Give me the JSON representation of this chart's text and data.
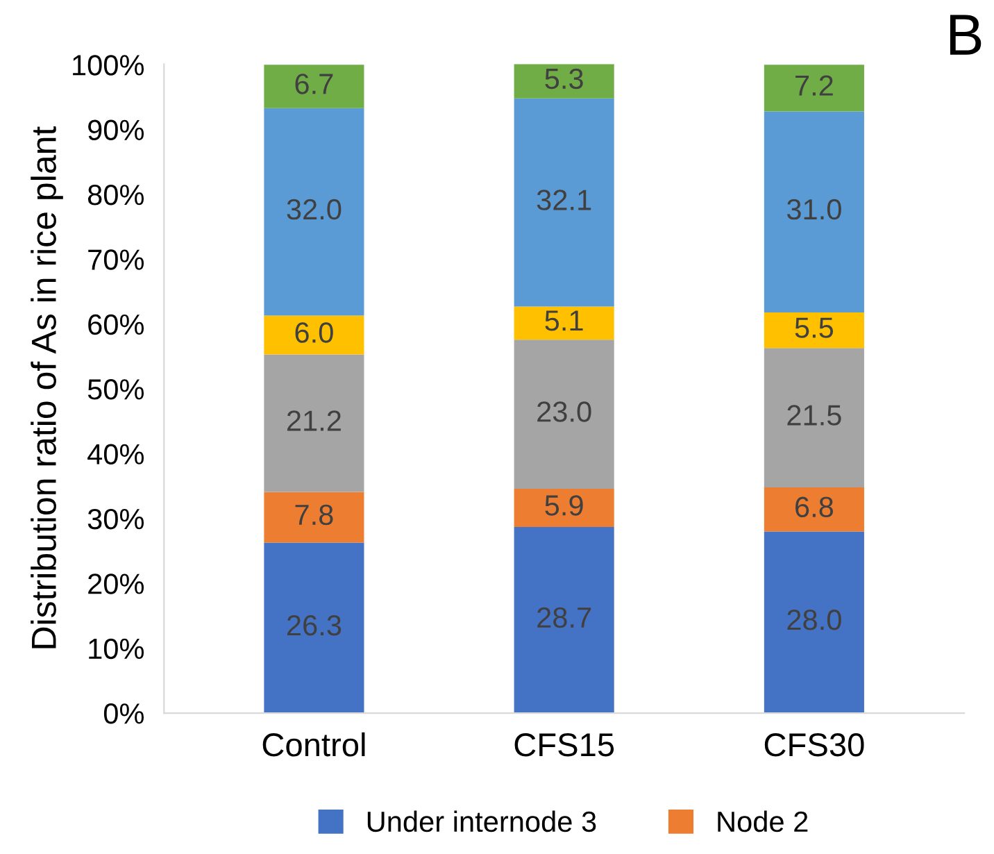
{
  "chart_data": {
    "type": "bar",
    "stacked": true,
    "ylabel": "Distribution ratio of As in rice plant",
    "categories": [
      "Control",
      "CFS15",
      "CFS30"
    ],
    "series": [
      {
        "name": "Under internode 3",
        "color": "#4472c4",
        "values": [
          26.3,
          28.7,
          28.0
        ],
        "value_labels": [
          "26.3",
          "28.7",
          "28.0"
        ]
      },
      {
        "name": "Node 2",
        "color": "#ed7d31",
        "values": [
          7.8,
          5.9,
          6.8
        ],
        "value_labels": [
          "7.8",
          "5.9",
          "6.8"
        ]
      },
      {
        "color": "#a5a5a5",
        "values": [
          21.2,
          23.0,
          21.5
        ],
        "value_labels": [
          "21.2",
          "23.0",
          "21.5"
        ]
      },
      {
        "color": "#ffc000",
        "values": [
          6.0,
          5.1,
          5.5
        ],
        "value_labels": [
          "6.0",
          "5.1",
          "5.5"
        ]
      },
      {
        "color": "#5b9bd5",
        "values": [
          32.0,
          32.1,
          31.0
        ],
        "value_labels": [
          "32.0",
          "32.1",
          "31.0"
        ]
      },
      {
        "color": "#70ad47",
        "values": [
          6.7,
          5.3,
          7.2
        ],
        "value_labels": [
          "6.7",
          "5.3",
          "7.2"
        ]
      }
    ],
    "ylim": [
      0,
      100.1
    ],
    "yticks": [
      {
        "value": 0,
        "label": "0%"
      },
      {
        "value": 10,
        "label": "10%"
      },
      {
        "value": 20,
        "label": "20%"
      },
      {
        "value": 30,
        "label": "30%"
      },
      {
        "value": 40,
        "label": "40%"
      },
      {
        "value": 50,
        "label": "50%"
      },
      {
        "value": 60,
        "label": "60%"
      },
      {
        "value": 70,
        "label": "70%"
      },
      {
        "value": 80,
        "label": "80%"
      },
      {
        "value": 90,
        "label": "90%"
      },
      {
        "value": 100,
        "label": "100%"
      }
    ],
    "grid": false,
    "legend": "bottom",
    "annotations": [
      "B"
    ]
  }
}
